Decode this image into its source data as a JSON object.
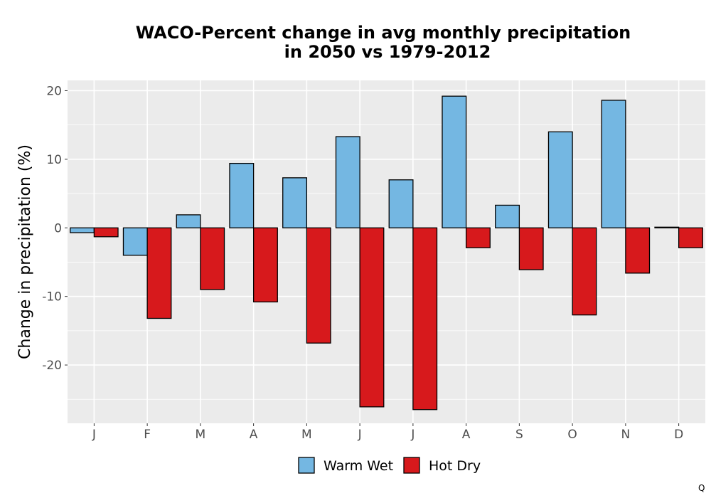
{
  "chart_data": {
    "type": "bar",
    "title_line1": "WACO-Percent change in avg monthly precipitation",
    "title_line2": "in 2050 vs 1979-2012",
    "xlabel": "",
    "ylabel": "Change in precipitation (%)",
    "categories": [
      "J",
      "F",
      "M",
      "A",
      "M",
      "J",
      "J",
      "A",
      "S",
      "O",
      "N",
      "D"
    ],
    "series": [
      {
        "name": "Warm Wet",
        "color": "#74b7e2",
        "values": [
          -0.7,
          -4.0,
          1.9,
          9.4,
          7.3,
          13.3,
          7.0,
          19.2,
          3.3,
          14.0,
          18.6,
          0.1
        ]
      },
      {
        "name": "Hot Dry",
        "color": "#d7191c",
        "values": [
          -1.3,
          -13.2,
          -9.0,
          -10.8,
          -16.8,
          -26.1,
          -26.5,
          -2.9,
          -6.1,
          -12.7,
          -6.6,
          -2.9
        ]
      }
    ],
    "ylim": [
      -28.5,
      21.5
    ],
    "yticks": [
      20,
      10,
      0,
      -10,
      -20
    ],
    "ytick_labels": [
      "20",
      "10",
      "0",
      "-10",
      "-20"
    ],
    "grid": true,
    "legend_position": "bottom"
  },
  "corner_mark": "Q"
}
